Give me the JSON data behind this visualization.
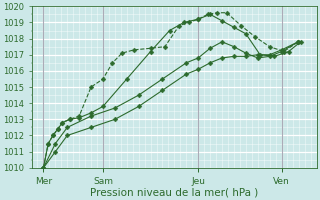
{
  "xlabel": "Pression niveau de la mer( hPa )",
  "ylim": [
    1010,
    1020
  ],
  "xlim": [
    0,
    12
  ],
  "yticks": [
    1010,
    1011,
    1012,
    1013,
    1014,
    1015,
    1016,
    1017,
    1018,
    1019,
    1020
  ],
  "background_color": "#cce8e8",
  "grid_color_major": "#ffffff",
  "grid_color_minor": "#ddf0f0",
  "line_color": "#2d6b2d",
  "vline_color": "#888899",
  "day_labels": [
    "Mer",
    "Sam",
    "Jeu",
    "Ven"
  ],
  "day_positions": [
    0.5,
    3.0,
    7.0,
    10.5
  ],
  "series1": {
    "x": [
      0.5,
      0.7,
      0.9,
      1.1,
      1.3,
      1.6,
      2.0,
      2.5,
      3.0,
      3.4,
      3.8,
      4.3,
      5.0,
      5.6,
      6.2,
      6.6,
      7.0,
      7.4,
      7.8,
      8.2,
      8.8,
      9.4,
      10.0,
      10.6,
      11.2
    ],
    "y": [
      1010.0,
      1011.5,
      1012.0,
      1012.4,
      1012.8,
      1013.0,
      1013.2,
      1015.0,
      1015.5,
      1016.5,
      1017.1,
      1017.3,
      1017.4,
      1017.5,
      1018.8,
      1019.0,
      1019.2,
      1019.5,
      1019.6,
      1019.6,
      1018.8,
      1018.1,
      1017.5,
      1017.2,
      1017.8
    ],
    "linestyle": "--",
    "markersize": 2.5
  },
  "series2": {
    "x": [
      0.5,
      0.7,
      0.9,
      1.1,
      1.3,
      1.6,
      2.0,
      2.5,
      3.0,
      4.0,
      5.0,
      5.8,
      6.4,
      7.0,
      7.5,
      8.0,
      8.5,
      9.0,
      9.6,
      10.2,
      10.8,
      11.3
    ],
    "y": [
      1010.0,
      1011.5,
      1012.0,
      1012.4,
      1012.8,
      1013.0,
      1013.1,
      1013.4,
      1013.8,
      1015.5,
      1017.2,
      1018.5,
      1019.0,
      1019.2,
      1019.5,
      1019.1,
      1018.7,
      1018.3,
      1017.0,
      1016.9,
      1017.2,
      1017.8
    ],
    "linestyle": "-",
    "markersize": 2.5
  },
  "series3": {
    "x": [
      0.5,
      1.0,
      1.5,
      2.5,
      3.5,
      4.5,
      5.5,
      6.5,
      7.0,
      7.5,
      8.0,
      8.5,
      9.0,
      9.5,
      10.0,
      10.5,
      11.2
    ],
    "y": [
      1010.0,
      1011.5,
      1012.5,
      1013.2,
      1013.7,
      1014.5,
      1015.5,
      1016.5,
      1016.8,
      1017.4,
      1017.8,
      1017.5,
      1017.1,
      1016.8,
      1016.9,
      1017.2,
      1017.8
    ],
    "linestyle": "-",
    "markersize": 2.5
  },
  "series4": {
    "x": [
      0.5,
      1.0,
      1.5,
      2.5,
      3.5,
      4.5,
      5.5,
      6.5,
      7.0,
      7.5,
      8.0,
      8.5,
      9.0,
      9.5,
      10.0,
      10.5,
      11.2
    ],
    "y": [
      1010.0,
      1011.0,
      1012.0,
      1012.5,
      1013.0,
      1013.8,
      1014.8,
      1015.8,
      1016.1,
      1016.5,
      1016.8,
      1016.9,
      1016.9,
      1017.0,
      1017.0,
      1017.3,
      1017.8
    ],
    "linestyle": "-",
    "markersize": 2.5
  }
}
